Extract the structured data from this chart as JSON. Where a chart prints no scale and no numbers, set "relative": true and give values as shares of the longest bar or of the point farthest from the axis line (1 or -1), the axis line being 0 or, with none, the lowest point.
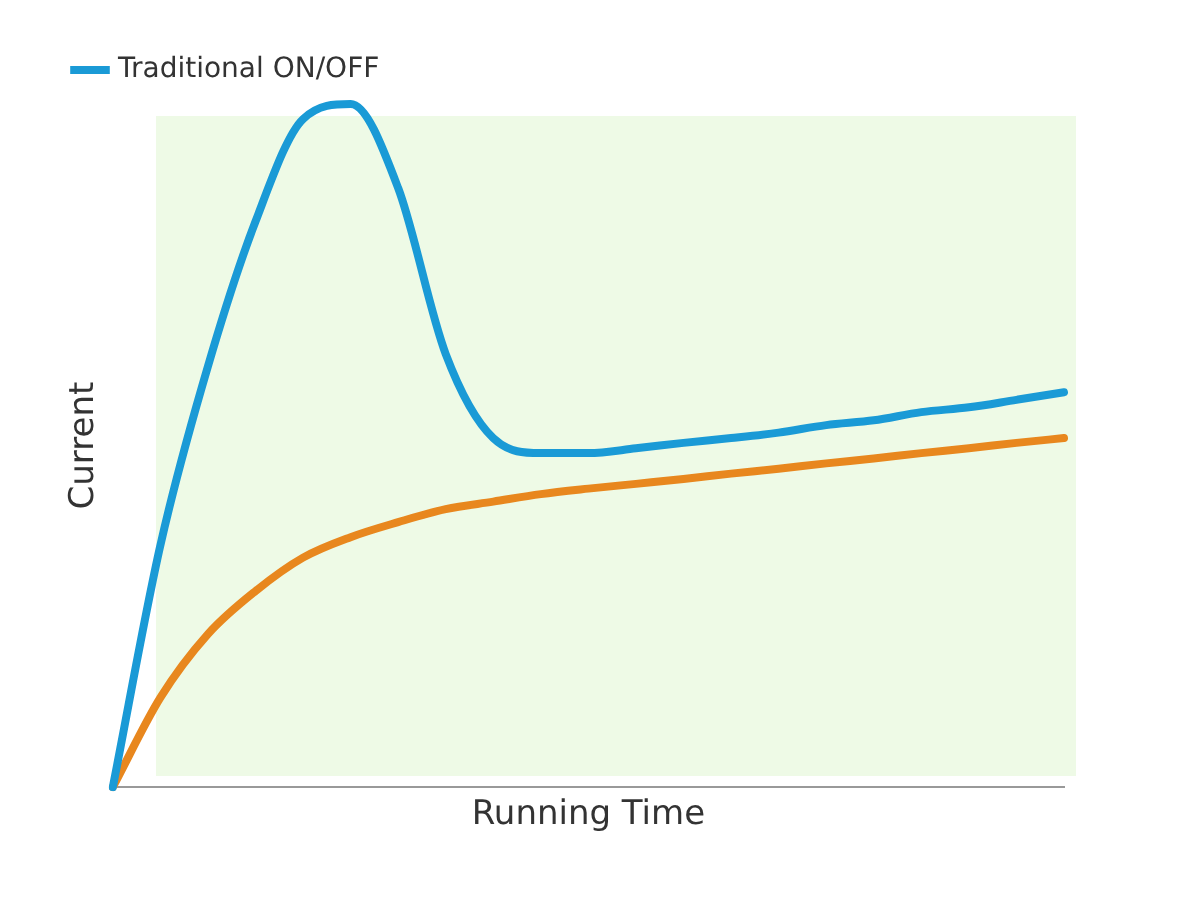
{
  "chart_data": {
    "type": "line",
    "xlabel": "Running Time",
    "ylabel": "Current",
    "relative": true,
    "legend": "top left",
    "grid": false,
    "marker": "none",
    "line_style": "solid",
    "categories": [
      null,
      null,
      null,
      null,
      null,
      null,
      null,
      null,
      null,
      null,
      null,
      null,
      null,
      null,
      null,
      null,
      null,
      null,
      null,
      null,
      null
    ],
    "series": [
      {
        "name": "Traditional ON/OFF",
        "color": "#1a9ad6",
        "values": [
          0,
          0.354,
          0.616,
          0.828,
          0.978,
          1,
          0.877,
          0.634,
          0.511,
          0.489,
          0.489,
          0.496,
          0.504,
          0.511,
          0.519,
          0.53,
          0.537,
          0.549,
          0.556,
          0.567,
          0.578
        ]
      },
      {
        "color": "#e8871e",
        "values": [
          0,
          0.131,
          0.224,
          0.287,
          0.336,
          0.366,
          0.388,
          0.407,
          0.418,
          0.429,
          0.437,
          0.444,
          0.451,
          0.459,
          0.466,
          0.474,
          0.481,
          0.489,
          0.496,
          0.504,
          0.511
        ]
      }
    ]
  }
}
